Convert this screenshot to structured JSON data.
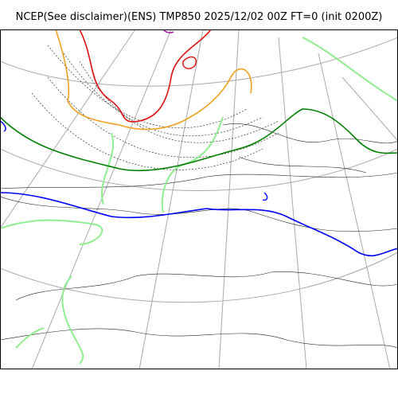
{
  "title": "NCEP(See disclaimer)(ENS) TMP850 2025/12/02 00Z FT=0 (init 0200Z)",
  "map": {
    "projection": "polar-stereographic",
    "coastlines": "black-thin",
    "graticule": "grey",
    "contour_colors": {
      "very_cold": "#a020a0",
      "cold_red": "#e01010",
      "orange": "#f0a020",
      "light_green": "#90ee90",
      "green": "#008000",
      "blue": "#0000ff",
      "isotherm_dashed": "#333333"
    }
  }
}
